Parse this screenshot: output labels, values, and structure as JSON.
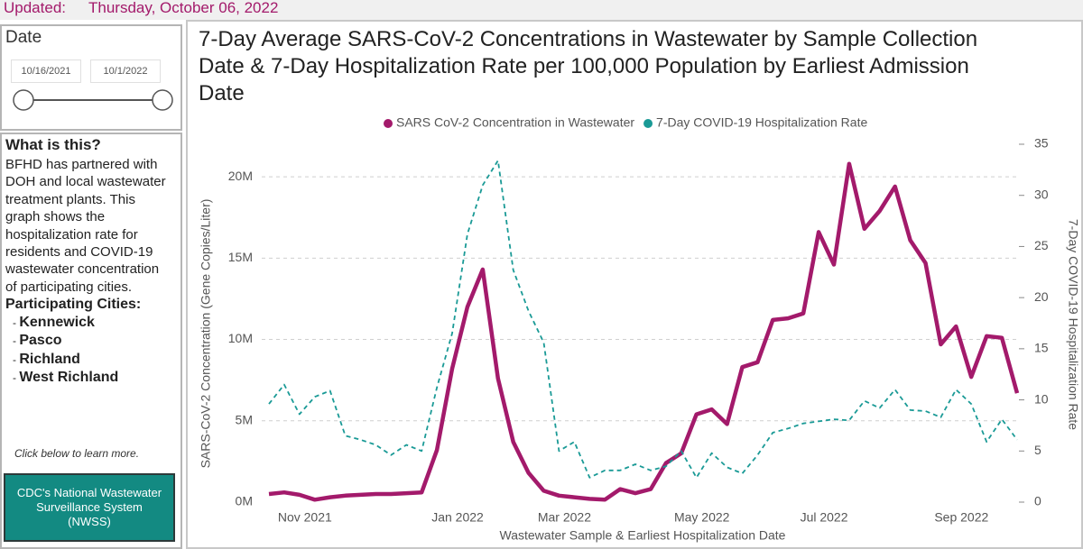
{
  "updated": {
    "label": "Updated:",
    "date": "Thursday, October 06, 2022"
  },
  "date_filter": {
    "title": "Date",
    "start": "10/16/2021",
    "end": "10/1/2022"
  },
  "info": {
    "heading": "What is this?",
    "body": "BFHD has partnered with DOH and local wastewater treatment plants. This graph shows the hospitalization rate for residents and COVID-19 wastewater concentration of participating cities.",
    "cities_heading": "Participating Cities:",
    "cities": [
      "Kennewick",
      "Pasco",
      "Richland",
      "West Richland"
    ],
    "note": "Click below to learn more.",
    "button": "CDC's National Wastewater Surveillance System (NWSS)"
  },
  "chart_data": {
    "type": "line",
    "title": "7-Day Average SARS-CoV-2 Concentrations in Wastewater by Sample Collection Date & 7-Day Hospitalization Rate per 100,000 Population by Earliest Admission Date",
    "x_label": "Wastewater Sample & Earliest Hospitalization Date",
    "y_label": "SARS-CoV-2 Concentration (Gene Copies/Liter)",
    "y2_label": "7-Day COVID-19 Hospitalization Rate",
    "categories": [
      null,
      null,
      "Nov 2021",
      null,
      null,
      null,
      null,
      null,
      null,
      null,
      null,
      null,
      "Jan 2022",
      null,
      null,
      null,
      null,
      null,
      null,
      "Mar 2022",
      null,
      null,
      null,
      null,
      null,
      null,
      null,
      null,
      "May 2022",
      null,
      null,
      null,
      null,
      null,
      null,
      null,
      "Jul 2022",
      null,
      null,
      null,
      null,
      null,
      null,
      null,
      null,
      "Sep 2022",
      null,
      null,
      null,
      null
    ],
    "series": [
      {
        "name": "SARS CoV-2 Concentration in Wastewater",
        "color": "#a31a6b",
        "axis": "y",
        "dash": "solid",
        "values": [
          500000,
          600000,
          450000,
          150000,
          300000,
          400000,
          450000,
          500000,
          500000,
          550000,
          600000,
          3200000,
          8200000,
          12000000,
          14300000,
          7600000,
          3700000,
          1800000,
          700000,
          400000,
          300000,
          200000,
          150000,
          800000,
          550000,
          800000,
          2400000,
          3000000,
          5400000,
          5700000,
          4800000,
          8300000,
          8600000,
          11200000,
          11300000,
          11600000,
          16600000,
          14600000,
          20800000,
          16800000,
          17900000,
          19400000,
          16100000,
          14700000,
          9700000,
          10800000,
          7700000,
          10200000,
          10100000,
          6700000
        ]
      },
      {
        "name": "7-Day COVID-19 Hospitalization Rate",
        "color": "#1a9a96",
        "axis": "y2",
        "dash": "dashed",
        "values": [
          9.6,
          11.5,
          8.6,
          10.3,
          10.9,
          6.5,
          6.1,
          5.6,
          4.6,
          5.6,
          5.0,
          11.2,
          16.5,
          26.2,
          31.0,
          33.4,
          22.7,
          18.7,
          15.6,
          5.0,
          5.9,
          2.4,
          3.1,
          3.1,
          3.7,
          3.1,
          3.5,
          5.0,
          2.4,
          4.8,
          3.4,
          2.8,
          4.6,
          6.8,
          7.2,
          7.7,
          7.9,
          8.1,
          8.0,
          9.9,
          9.2,
          11.0,
          9.0,
          8.9,
          8.3,
          11.0,
          9.6,
          5.9,
          8.1,
          6.1
        ]
      }
    ],
    "ylim": [
      0,
      22000000
    ],
    "yticks": [
      {
        "value": 0,
        "label": "0M"
      },
      {
        "value": 5000000,
        "label": "5M"
      },
      {
        "value": 10000000,
        "label": "10M"
      },
      {
        "value": 15000000,
        "label": "15M"
      },
      {
        "value": 20000000,
        "label": "20M"
      }
    ],
    "y2lim": [
      0,
      35
    ],
    "y2ticks": [
      0,
      5,
      10,
      15,
      20,
      25,
      30,
      35
    ],
    "grid": true,
    "legend": "top"
  }
}
